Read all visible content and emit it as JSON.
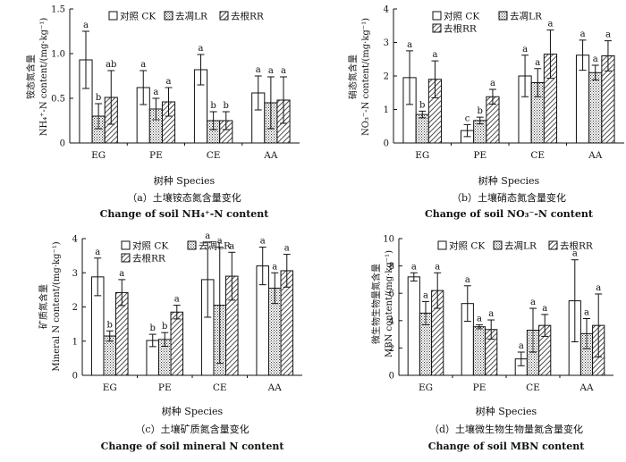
{
  "patterns": {
    "ck": "#ffffff",
    "lr": "#dadada",
    "rr": "#eeeeee",
    "ink": "#111111"
  },
  "chart_data": [
    {
      "type": "bar",
      "panel": "a",
      "caption_zh": "（a）土壤铵态氮含量变化",
      "caption_en": "Change of soil NH₄⁺-N content",
      "ylabel_zh": "铵态氮含量",
      "ylabel_en": "NH₄⁺-N content/(mg·kg⁻¹)",
      "xlabel": "树种 Species",
      "ylim": [
        0,
        1.5
      ],
      "yticks": [
        0,
        0.5,
        1.0,
        1.5
      ],
      "ytick_labels": [
        "0",
        "0.5",
        "1.0",
        "1.5"
      ],
      "categories": [
        "EG",
        "PE",
        "CE",
        "AA"
      ],
      "legend_cols": 3,
      "series": [
        {
          "name": "对照 CK",
          "key": "ck",
          "values": [
            0.93,
            0.62,
            0.82,
            0.56
          ],
          "errors": [
            0.32,
            0.19,
            0.17,
            0.19
          ],
          "letters": [
            "a",
            "a",
            "a",
            "a"
          ]
        },
        {
          "name": "去凋LR",
          "key": "lr",
          "values": [
            0.3,
            0.38,
            0.25,
            0.45
          ],
          "errors": [
            0.14,
            0.12,
            0.1,
            0.29
          ],
          "letters": [
            "b",
            "a",
            "b",
            "a"
          ]
        },
        {
          "name": "去根RR",
          "key": "rr",
          "values": [
            0.51,
            0.46,
            0.25,
            0.48
          ],
          "errors": [
            0.3,
            0.16,
            0.1,
            0.26
          ],
          "letters": [
            "ab",
            "a",
            "b",
            "a"
          ]
        }
      ]
    },
    {
      "type": "bar",
      "panel": "b",
      "caption_zh": "（b）土壤硝态氮含量变化",
      "caption_en": "Change of soil NO₃⁻-N content",
      "ylabel_zh": "硝态氮含量",
      "ylabel_en": "NO₃⁻-N content/(mg·kg⁻¹)",
      "xlabel": "树种 Species",
      "ylim": [
        0,
        4
      ],
      "yticks": [
        0,
        1,
        2,
        3,
        4
      ],
      "ytick_labels": [
        "0",
        "1",
        "2",
        "3",
        "4"
      ],
      "categories": [
        "EG",
        "PE",
        "CE",
        "AA"
      ],
      "legend_cols": 2,
      "series": [
        {
          "name": "对照 CK",
          "key": "ck",
          "values": [
            1.95,
            0.37,
            2.0,
            2.62
          ],
          "errors": [
            0.8,
            0.18,
            0.62,
            0.45
          ],
          "letters": [
            "a",
            "c",
            "a",
            "a"
          ]
        },
        {
          "name": "去凋LR",
          "key": "lr",
          "values": [
            0.85,
            0.67,
            1.8,
            2.1
          ],
          "errors": [
            0.1,
            0.1,
            0.42,
            0.22
          ],
          "letters": [
            "b",
            "b",
            "a",
            "a"
          ]
        },
        {
          "name": "去根RR",
          "key": "rr",
          "values": [
            1.9,
            1.38,
            2.65,
            2.6
          ],
          "errors": [
            0.55,
            0.22,
            0.72,
            0.45
          ],
          "letters": [
            "a",
            "a",
            "a",
            "a"
          ]
        }
      ]
    },
    {
      "type": "bar",
      "panel": "c",
      "caption_zh": "（c）土壤矿质氮含量变化",
      "caption_en": "Change of soil mineral N content",
      "ylabel_zh": "矿质氮含量",
      "ylabel_en": "Mineral N content/(mg·kg⁻¹)",
      "xlabel": "树种 Species",
      "ylim": [
        0,
        4
      ],
      "yticks": [
        0,
        1,
        2,
        3,
        4
      ],
      "ytick_labels": [
        "0",
        "1",
        "2",
        "3",
        "4"
      ],
      "categories": [
        "EG",
        "PE",
        "CE",
        "AA"
      ],
      "legend_cols": 2,
      "series": [
        {
          "name": "对照 CK",
          "key": "ck",
          "values": [
            2.88,
            1.02,
            2.8,
            3.2
          ],
          "errors": [
            0.55,
            0.18,
            1.1,
            0.55
          ],
          "letters": [
            "a",
            "b",
            "a",
            "a"
          ]
        },
        {
          "name": "去凋LR",
          "key": "lr",
          "values": [
            1.15,
            1.05,
            2.05,
            2.55
          ],
          "errors": [
            0.15,
            0.2,
            1.7,
            0.45
          ],
          "letters": [
            "b",
            "b",
            "a",
            "a"
          ]
        },
        {
          "name": "去根RR",
          "key": "rr",
          "values": [
            2.42,
            1.85,
            2.9,
            3.06
          ],
          "errors": [
            0.38,
            0.2,
            0.7,
            0.48
          ],
          "letters": [
            "a",
            "a",
            "a",
            "a"
          ]
        }
      ]
    },
    {
      "type": "bar",
      "panel": "d",
      "caption_zh": "（d）土壤微生物生物量氮含量变化",
      "caption_en": "Change of soil MBN content",
      "ylabel_zh": "微生物生物量氮含量",
      "ylabel_en": "MBN content/(mg·kg⁻¹)",
      "xlabel": "树种 Species",
      "ylim": [
        0,
        10
      ],
      "yticks": [
        0,
        2,
        4,
        6,
        8,
        10
      ],
      "ytick_labels": [
        "0",
        "2",
        "4",
        "6",
        "8",
        "10"
      ],
      "categories": [
        "EG",
        "PE",
        "CE",
        "AA"
      ],
      "legend_cols": 3,
      "series": [
        {
          "name": "对照 CK",
          "key": "ck",
          "values": [
            7.2,
            5.25,
            1.2,
            5.45
          ],
          "errors": [
            0.3,
            1.3,
            0.5,
            3.0
          ],
          "letters": [
            "a",
            "a",
            "a",
            "a"
          ]
        },
        {
          "name": "去凋LR",
          "key": "lr",
          "values": [
            4.55,
            3.55,
            3.3,
            3.05
          ],
          "errors": [
            0.85,
            0.15,
            1.6,
            1.1
          ],
          "letters": [
            "a",
            "a",
            "a",
            "a"
          ]
        },
        {
          "name": "去根RR",
          "key": "rr",
          "values": [
            6.2,
            3.35,
            3.65,
            3.65
          ],
          "errors": [
            1.3,
            0.7,
            0.8,
            2.3
          ],
          "letters": [
            "a",
            "a",
            "a",
            "a"
          ]
        }
      ]
    }
  ]
}
